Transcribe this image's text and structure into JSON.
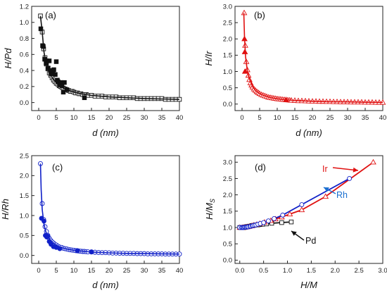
{
  "colors": {
    "pd": "#111111",
    "ir": "#e01010",
    "rh": "#1020c8",
    "rh_annotation": "#1a6fd0"
  },
  "chart_data": [
    {
      "id": "a",
      "type": "scatter",
      "panel_label": "(a)",
      "xlabel": "d (nm)",
      "ylabel": "H/Pd",
      "xlim": [
        -2,
        40
      ],
      "ylim": [
        -0.1,
        1.2
      ],
      "xticks": [
        0,
        5,
        10,
        15,
        20,
        25,
        30,
        35,
        40
      ],
      "yticks": [
        0.0,
        0.2,
        0.4,
        0.6,
        0.8,
        1.0,
        1.2
      ],
      "color": "#111111",
      "marker": "square",
      "series": [
        {
          "kind": "open",
          "x": [
            0.5,
            1.0,
            1.4,
            1.8,
            2.2,
            2.6,
            3.0,
            3.4,
            3.8,
            4.2,
            4.6,
            5.0,
            5.4,
            5.8,
            6.2,
            6.6,
            7.0,
            7.5,
            8.0,
            8.5,
            9.0,
            9.5,
            10,
            10.5,
            11,
            11.5,
            12,
            12.5,
            13,
            13.5,
            14,
            15,
            16,
            17,
            18,
            19,
            20,
            21,
            22,
            23,
            24,
            25,
            26,
            27,
            28,
            29,
            30,
            31,
            32,
            33,
            34,
            35,
            36,
            37,
            38,
            39,
            40
          ],
          "y": [
            1.08,
            0.88,
            0.67,
            0.56,
            0.48,
            0.42,
            0.37,
            0.34,
            0.31,
            0.28,
            0.26,
            0.24,
            0.23,
            0.21,
            0.2,
            0.19,
            0.18,
            0.17,
            0.16,
            0.15,
            0.14,
            0.14,
            0.13,
            0.12,
            0.12,
            0.11,
            0.11,
            0.1,
            0.1,
            0.1,
            0.09,
            0.09,
            0.08,
            0.08,
            0.08,
            0.07,
            0.07,
            0.07,
            0.07,
            0.06,
            0.06,
            0.06,
            0.06,
            0.06,
            0.05,
            0.05,
            0.05,
            0.05,
            0.05,
            0.05,
            0.05,
            0.05,
            0.04,
            0.04,
            0.04,
            0.04,
            0.04
          ]
        },
        {
          "kind": "filled",
          "x": [
            0.6,
            1.1,
            1.3,
            1.7,
            2.1,
            2.3,
            2.7,
            3.0,
            3.3,
            3.6,
            4.0,
            4.3,
            4.7,
            5.0,
            5.3,
            5.5,
            6.0,
            6.3,
            6.6,
            7.0,
            7.3,
            8.0,
            13.0
          ],
          "y": [
            0.92,
            0.71,
            0.7,
            0.54,
            0.49,
            0.52,
            0.43,
            0.52,
            0.4,
            0.36,
            0.37,
            0.41,
            0.35,
            0.51,
            0.28,
            0.26,
            0.22,
            0.25,
            0.21,
            0.13,
            0.25,
            0.16,
            0.06
          ]
        },
        {
          "kind": "fit-line",
          "x": [
            0.5,
            1.0,
            1.5,
            2.0,
            2.5,
            3.0,
            3.5,
            4.0,
            5.0,
            6.0,
            7.0,
            8.0,
            10.0,
            12.0,
            15.0,
            20.0,
            25.0,
            30.0,
            35.0,
            40.0
          ],
          "y": [
            1.08,
            0.88,
            0.63,
            0.51,
            0.44,
            0.38,
            0.34,
            0.3,
            0.25,
            0.21,
            0.18,
            0.16,
            0.13,
            0.11,
            0.09,
            0.07,
            0.06,
            0.05,
            0.045,
            0.04
          ]
        }
      ]
    },
    {
      "id": "b",
      "type": "scatter",
      "panel_label": "(b)",
      "xlabel": "d (nm)",
      "ylabel": "H/Ir",
      "xlim": [
        -2,
        40
      ],
      "ylim": [
        -0.2,
        3.0
      ],
      "xticks": [
        0,
        5,
        10,
        15,
        20,
        25,
        30,
        35,
        40
      ],
      "yticks": [
        0.0,
        0.5,
        1.0,
        1.5,
        2.0,
        2.5,
        3.0
      ],
      "color": "#e01010",
      "marker": "triangle",
      "series": [
        {
          "kind": "open",
          "x": [
            0.6,
            0.9,
            1.2,
            1.5,
            1.8,
            2.1,
            2.4,
            2.7,
            3.0,
            3.4,
            3.8,
            4.2,
            4.6,
            5.0,
            5.5,
            6.0,
            6.5,
            7.0,
            7.5,
            8.0,
            8.5,
            9.0,
            9.5,
            10,
            10.5,
            11,
            11.5,
            12,
            12.5,
            13,
            13.5,
            14,
            15,
            16,
            17,
            18,
            19,
            20,
            21,
            22,
            23,
            24,
            25,
            26,
            27,
            28,
            29,
            30,
            31,
            32,
            33,
            34,
            35,
            36,
            37,
            38,
            39,
            40
          ],
          "y": [
            2.8,
            1.8,
            1.3,
            1.05,
            0.88,
            0.75,
            0.65,
            0.58,
            0.52,
            0.46,
            0.42,
            0.38,
            0.35,
            0.32,
            0.29,
            0.27,
            0.25,
            0.23,
            0.21,
            0.2,
            0.19,
            0.18,
            0.17,
            0.16,
            0.155,
            0.15,
            0.14,
            0.135,
            0.13,
            0.125,
            0.12,
            0.115,
            0.11,
            0.1,
            0.1,
            0.095,
            0.09,
            0.085,
            0.085,
            0.08,
            0.08,
            0.075,
            0.075,
            0.07,
            0.07,
            0.065,
            0.065,
            0.065,
            0.06,
            0.06,
            0.06,
            0.06,
            0.055,
            0.055,
            0.055,
            0.05,
            0.05,
            0.05
          ]
        },
        {
          "kind": "filled",
          "x": [
            0.7,
            0.8,
            0.85,
            12.5
          ],
          "y": [
            2.0,
            1.6,
            1.0,
            0.13
          ]
        },
        {
          "kind": "fit-line",
          "x": [
            0.5,
            0.7,
            1.0,
            1.5,
            2.0,
            3.0,
            4.0,
            5.0,
            6.0,
            8.0,
            10.0,
            12.0,
            15.0,
            20.0,
            25.0,
            30.0,
            35.0,
            40.0
          ],
          "y": [
            2.8,
            2.05,
            1.45,
            1.02,
            0.8,
            0.53,
            0.4,
            0.32,
            0.27,
            0.2,
            0.16,
            0.135,
            0.11,
            0.085,
            0.07,
            0.065,
            0.055,
            0.05
          ]
        }
      ]
    },
    {
      "id": "c",
      "type": "scatter",
      "panel_label": "(c)",
      "xlabel": "d (nm)",
      "ylabel": "H/Rh",
      "xlim": [
        -2,
        40
      ],
      "ylim": [
        -0.2,
        2.5
      ],
      "xticks": [
        0,
        5,
        10,
        15,
        20,
        25,
        30,
        35,
        40
      ],
      "yticks": [
        0.0,
        0.5,
        1.0,
        1.5,
        2.0,
        2.5
      ],
      "color": "#1020c8",
      "marker": "circle",
      "series": [
        {
          "kind": "open",
          "x": [
            0.5,
            1.0,
            1.4,
            1.8,
            2.2,
            2.6,
            3.0,
            3.4,
            3.8,
            4.2,
            4.6,
            5.0,
            5.5,
            6.0,
            6.5,
            7.0,
            7.5,
            8.0,
            8.5,
            9.0,
            9.5,
            10,
            10.5,
            11,
            11.5,
            12,
            12.5,
            13,
            13.5,
            14,
            15,
            16,
            17,
            18,
            19,
            20,
            21,
            22,
            23,
            24,
            25,
            26,
            27,
            28,
            29,
            30,
            31,
            32,
            33,
            34,
            35,
            36,
            37,
            38,
            39,
            40
          ],
          "y": [
            2.3,
            1.3,
            0.9,
            0.72,
            0.6,
            0.5,
            0.43,
            0.38,
            0.34,
            0.31,
            0.28,
            0.26,
            0.23,
            0.21,
            0.2,
            0.18,
            0.17,
            0.16,
            0.15,
            0.14,
            0.135,
            0.13,
            0.12,
            0.115,
            0.11,
            0.105,
            0.1,
            0.1,
            0.095,
            0.09,
            0.085,
            0.08,
            0.075,
            0.07,
            0.07,
            0.065,
            0.06,
            0.06,
            0.055,
            0.055,
            0.05,
            0.05,
            0.05,
            0.045,
            0.045,
            0.045,
            0.04,
            0.04,
            0.04,
            0.04,
            0.04,
            0.035,
            0.035,
            0.035,
            0.035,
            0.035
          ]
        },
        {
          "kind": "filled",
          "x": [
            0.8,
            1.5,
            1.9,
            2.3,
            2.6,
            3.0,
            3.5,
            4.2,
            5.0,
            6.0,
            11.0,
            15.0
          ],
          "y": [
            0.93,
            0.86,
            0.5,
            0.46,
            0.48,
            0.35,
            0.28,
            0.22,
            0.2,
            0.17,
            0.12,
            0.09
          ]
        },
        {
          "kind": "fit-line",
          "x": [
            0.5,
            0.7,
            1.0,
            1.5,
            2.0,
            3.0,
            4.0,
            5.0,
            6.0,
            8.0,
            10.0,
            12.0,
            15.0,
            20.0,
            25.0,
            30.0,
            35.0,
            40.0
          ],
          "y": [
            2.3,
            1.65,
            1.15,
            0.78,
            0.6,
            0.42,
            0.32,
            0.26,
            0.21,
            0.16,
            0.13,
            0.11,
            0.085,
            0.065,
            0.05,
            0.045,
            0.04,
            0.035
          ]
        }
      ]
    },
    {
      "id": "d",
      "type": "line",
      "panel_label": "(d)",
      "xlabel": "H/M",
      "ylabel": "H/M",
      "ylabel_subscript": "S",
      "xlim": [
        -0.1,
        3.0
      ],
      "ylim": [
        -0.1,
        3.2
      ],
      "xticks": [
        0.0,
        0.5,
        1.0,
        1.5,
        2.0,
        2.5,
        3.0
      ],
      "yticks": [
        0.0,
        0.5,
        1.0,
        1.5,
        2.0,
        2.5,
        3.0
      ],
      "series": [
        {
          "name": "Pd",
          "color": "#111111",
          "marker": "square",
          "x": [
            0.0,
            0.04,
            0.06,
            0.07,
            0.08,
            0.09,
            0.1,
            0.11,
            0.12,
            0.13,
            0.14,
            0.15,
            0.16,
            0.18,
            0.2,
            0.24,
            0.26,
            0.28,
            0.31,
            0.34,
            0.38,
            0.42,
            0.48,
            0.56,
            0.67,
            0.88,
            1.08
          ],
          "y": [
            1.0,
            1.0,
            1.0,
            1.0,
            1.0,
            1.0,
            1.01,
            1.01,
            1.01,
            1.02,
            1.02,
            1.02,
            1.03,
            1.03,
            1.04,
            1.05,
            1.06,
            1.06,
            1.07,
            1.08,
            1.08,
            1.09,
            1.1,
            1.11,
            1.13,
            1.15,
            1.17
          ]
        },
        {
          "name": "Ir",
          "color": "#e01010",
          "marker": "triangle",
          "x": [
            0.0,
            0.05,
            0.08,
            0.12,
            0.16,
            0.2,
            0.25,
            0.29,
            0.35,
            0.42,
            0.52,
            0.65,
            0.75,
            0.88,
            1.05,
            1.3,
            1.8,
            2.8
          ],
          "y": [
            1.0,
            1.0,
            1.0,
            1.01,
            1.02,
            1.03,
            1.05,
            1.07,
            1.09,
            1.12,
            1.16,
            1.21,
            1.26,
            1.32,
            1.41,
            1.54,
            1.95,
            3.0
          ]
        },
        {
          "name": "Rh",
          "color": "#1020c8",
          "marker": "circle",
          "x": [
            0.0,
            0.04,
            0.06,
            0.08,
            0.1,
            0.12,
            0.14,
            0.16,
            0.18,
            0.21,
            0.23,
            0.26,
            0.28,
            0.31,
            0.34,
            0.38,
            0.43,
            0.5,
            0.6,
            0.72,
            0.9,
            1.3,
            2.3
          ],
          "y": [
            1.0,
            1.0,
            1.0,
            1.0,
            1.01,
            1.01,
            1.01,
            1.02,
            1.02,
            1.03,
            1.04,
            1.05,
            1.06,
            1.07,
            1.08,
            1.1,
            1.12,
            1.15,
            1.2,
            1.27,
            1.38,
            1.7,
            2.5
          ]
        }
      ],
      "annotations": [
        {
          "text": "Ir",
          "color": "#e01010"
        },
        {
          "text": "Rh",
          "color": "#1a6fd0"
        },
        {
          "text": "Pd",
          "color": "#111111"
        }
      ]
    }
  ]
}
